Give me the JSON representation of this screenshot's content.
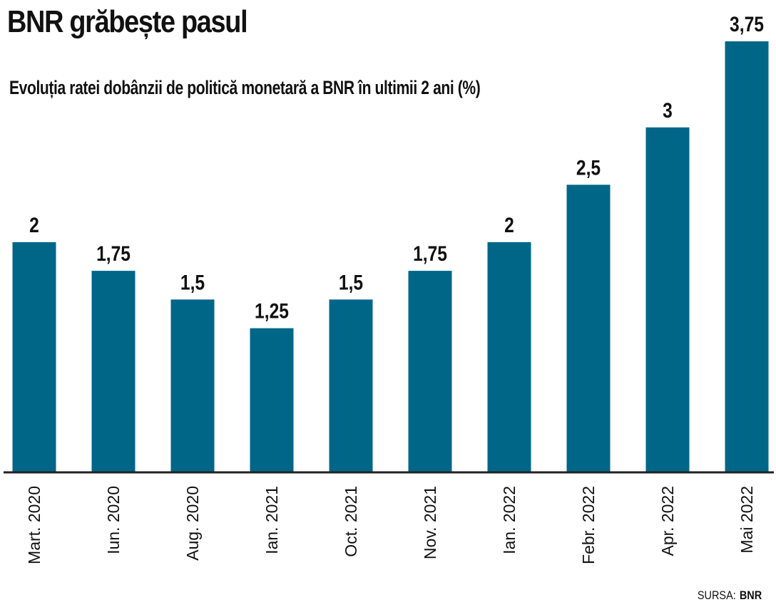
{
  "title": "BNR grăbește pasul",
  "chart_data": {
    "type": "bar",
    "title": "Evoluția ratei dobânzii de politică monetară a BNR în ultimii 2 ani (%)",
    "categories": [
      "Mart. 2020",
      "Iun. 2020",
      "Aug. 2020",
      "Ian. 2021",
      "Oct. 2021",
      "Nov. 2021",
      "Ian. 2022",
      "Febr. 2022",
      "Apr. 2022",
      "Mai 2022"
    ],
    "values": [
      2,
      1.75,
      1.5,
      1.25,
      1.5,
      1.75,
      2,
      2.5,
      3,
      3.75
    ],
    "value_labels": [
      "2",
      "1,75",
      "1,5",
      "1,25",
      "1,5",
      "1,75",
      "2",
      "2,5",
      "3",
      "3,75"
    ],
    "ylim": [
      0,
      3.75
    ],
    "grid": false,
    "legend": "none",
    "bar_color": "#006688"
  },
  "source": {
    "label": "SURSA:",
    "value": "BNR"
  }
}
